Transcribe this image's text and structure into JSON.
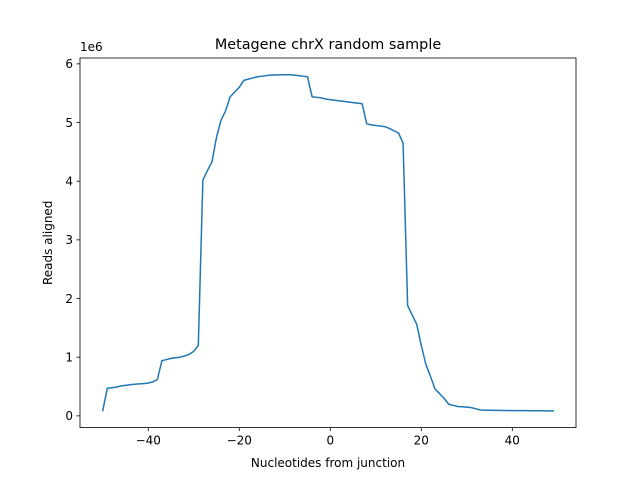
{
  "chart_data": {
    "type": "line",
    "title": "Metagene chrX random sample",
    "xlabel": "Nucleotides from junction",
    "ylabel": "Reads aligned",
    "y_offset_label": "1e6",
    "y_multiplier": 1000000,
    "xlim": [
      -55,
      54
    ],
    "ylim": [
      -0.2,
      6.1
    ],
    "xticks": [
      -40,
      -20,
      0,
      20,
      40
    ],
    "xtick_labels": [
      "−40",
      "−20",
      "0",
      "20",
      "40"
    ],
    "yticks": [
      0,
      1,
      2,
      3,
      4,
      5,
      6
    ],
    "ytick_labels": [
      "0",
      "1",
      "2",
      "3",
      "4",
      "5",
      "6"
    ],
    "grid": false,
    "line_color": "#1f77b4",
    "series": [
      {
        "x": [
          -50,
          -49,
          -48,
          -47,
          -46,
          -45,
          -44,
          -43,
          -42,
          -41,
          -40,
          -39,
          -38,
          -37,
          -36,
          -35,
          -34,
          -33,
          -32,
          -31,
          -30,
          -29,
          -28,
          -27,
          -26,
          -25,
          -24,
          -23,
          -22,
          -21,
          -20,
          -19,
          -18,
          -17,
          -16,
          -15,
          -14,
          -13,
          -12,
          -11,
          -10,
          -9,
          -8,
          -7,
          -6,
          -5,
          -4,
          -3,
          -2,
          -1,
          0,
          1,
          2,
          3,
          4,
          5,
          6,
          7,
          8,
          9,
          10,
          11,
          12,
          13,
          14,
          15,
          16,
          17,
          18,
          19,
          20,
          21,
          22,
          23,
          24,
          25,
          26,
          27,
          28,
          29,
          30,
          31,
          32,
          33,
          34,
          35,
          36,
          37,
          38,
          39,
          40,
          41,
          42,
          43,
          44,
          45,
          46,
          47,
          48,
          49
        ],
        "y": [
          0.09,
          0.47,
          0.48,
          0.49,
          0.51,
          0.52,
          0.53,
          0.54,
          0.545,
          0.55,
          0.56,
          0.58,
          0.62,
          0.94,
          0.96,
          0.98,
          0.99,
          1.0,
          1.02,
          1.05,
          1.1,
          1.2,
          4.02,
          4.18,
          4.33,
          4.75,
          5.04,
          5.2,
          5.44,
          5.52,
          5.6,
          5.72,
          5.74,
          5.76,
          5.78,
          5.79,
          5.8,
          5.81,
          5.81,
          5.815,
          5.815,
          5.815,
          5.81,
          5.8,
          5.79,
          5.78,
          5.44,
          5.43,
          5.42,
          5.4,
          5.39,
          5.38,
          5.37,
          5.36,
          5.35,
          5.34,
          5.33,
          5.32,
          4.98,
          4.96,
          4.95,
          4.94,
          4.93,
          4.9,
          4.86,
          4.82,
          4.65,
          1.88,
          1.72,
          1.56,
          1.2,
          0.88,
          0.68,
          0.46,
          0.38,
          0.3,
          0.2,
          0.18,
          0.16,
          0.155,
          0.15,
          0.14,
          0.12,
          0.1,
          0.095,
          0.095,
          0.094,
          0.093,
          0.092,
          0.091,
          0.09,
          0.09,
          0.089,
          0.089,
          0.088,
          0.088,
          0.087,
          0.087,
          0.086,
          0.086
        ]
      }
    ]
  }
}
